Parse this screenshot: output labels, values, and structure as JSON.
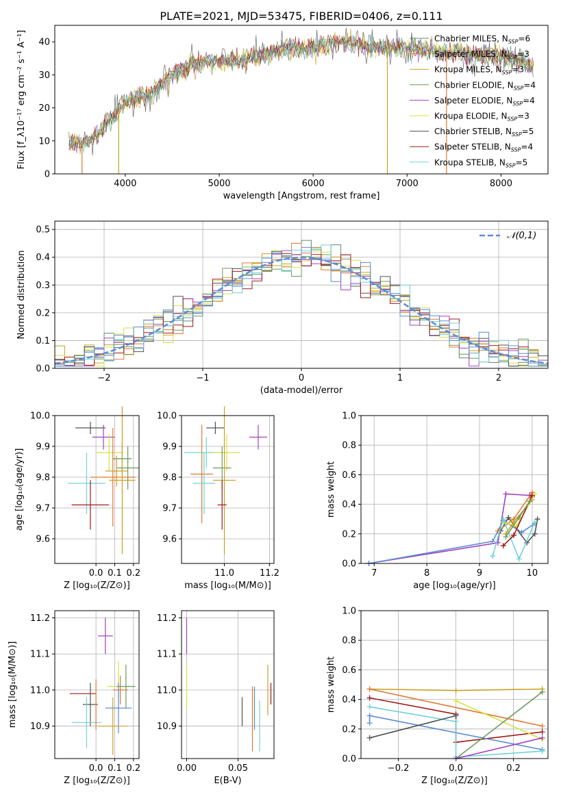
{
  "figure_title": "PLATE=2021, MJD=53475, FIBERID=0406, z=0.111",
  "colors": {
    "Chabrier MILES": "#5a8a6a",
    "Salpeter MILES": "#e07830",
    "Kroupa MILES": "#c8a020",
    "Chabrier ELODIE": "#6a9a5a",
    "Salpeter ELODIE": "#a040c0",
    "Kroupa ELODIE": "#d8e040",
    "Chabrier STELIB": "#505050",
    "Salpeter STELIB": "#a01818",
    "Kroupa STELIB": "#70d0d8",
    "gauss": "#5b8bd6"
  },
  "chart_data": [
    {
      "type": "line",
      "title": "PLATE=2021, MJD=53475, FIBERID=0406, z=0.111",
      "xlabel": "wavelength [Angstrom, rest frame]",
      "ylabel": "Flux [f_λ10⁻¹⁷ erg cm⁻² s⁻¹ A⁻¹]",
      "xlim": [
        3250,
        8500
      ],
      "ylim": [
        0,
        45
      ],
      "xticks": [
        4000,
        5000,
        6000,
        7000,
        8000
      ],
      "yticks": [
        0,
        10,
        20,
        30,
        40
      ],
      "legend_position": "right",
      "series": [
        {
          "name": "Chabrier MILES, N_SSP=6"
        },
        {
          "name": "Salpeter MILES, N_SSP=3"
        },
        {
          "name": "Kroupa MILES, N_SSP=3"
        },
        {
          "name": "Chabrier ELODIE, N_SSP=4"
        },
        {
          "name": "Salpeter ELODIE, N_SSP=4"
        },
        {
          "name": "Kroupa ELODIE, N_SSP=3"
        },
        {
          "name": "Chabrier STELIB, N_SSP=5"
        },
        {
          "name": "Salpeter STELIB, N_SSP=4"
        },
        {
          "name": "Kroupa STELIB, N_SSP=5"
        }
      ],
      "continuum": [
        [
          3400,
          9
        ],
        [
          3600,
          10
        ],
        [
          3700,
          12
        ],
        [
          3800,
          15
        ],
        [
          3950,
          20
        ],
        [
          4100,
          23
        ],
        [
          4300,
          25
        ],
        [
          4500,
          30
        ],
        [
          4700,
          33
        ],
        [
          4900,
          34
        ],
        [
          5100,
          34
        ],
        [
          5300,
          35
        ],
        [
          5500,
          36
        ],
        [
          5700,
          38
        ],
        [
          5900,
          38
        ],
        [
          6100,
          39
        ],
        [
          6300,
          40
        ],
        [
          6500,
          39
        ],
        [
          6700,
          38
        ],
        [
          6900,
          38
        ],
        [
          7100,
          38
        ],
        [
          7300,
          37
        ],
        [
          7500,
          37
        ],
        [
          7700,
          36
        ],
        [
          7900,
          36
        ],
        [
          8100,
          35
        ],
        [
          8300,
          33
        ]
      ],
      "grid": false
    },
    {
      "type": "histogram",
      "xlabel": "(data-model)/error",
      "ylabel": "Normed distribution",
      "xlim": [
        -2.5,
        2.5
      ],
      "ylim": [
        0,
        0.53
      ],
      "xticks": [
        -2,
        -1,
        0,
        1,
        2
      ],
      "yticks": [
        0.0,
        0.1,
        0.2,
        0.3,
        0.4,
        0.5
      ],
      "legend": "𝒩(0,1)",
      "legend_position": "top-right",
      "grid": true,
      "bin_width": 0.1
    },
    {
      "type": "scatter",
      "xlabel": "Z [log₁₀(Z/Z⊙)]",
      "ylabel": "age  [log₁₀(age/yr)]",
      "xlim": [
        -0.22,
        0.23
      ],
      "ylim": [
        9.52,
        10.0
      ],
      "xticks": [
        0.0,
        0.1,
        0.2
      ],
      "yticks": [
        9.6,
        9.7,
        9.8,
        9.9,
        10.0
      ],
      "grid": true,
      "points": [
        {
          "x": -0.03,
          "y": 9.96,
          "xerr": 0.08,
          "yerr": 0.02,
          "series": "Chabrier STELIB"
        },
        {
          "x": 0.04,
          "y": 9.93,
          "xerr": 0.06,
          "yerr": 0.04,
          "series": "Salpeter ELODIE"
        },
        {
          "x": 0.07,
          "y": 9.88,
          "xerr": 0.07,
          "yerr": 0.06,
          "series": "Kroupa ELODIE"
        },
        {
          "x": 0.17,
          "y": 9.83,
          "xerr": 0.06,
          "yerr": 0.07,
          "series": "Chabrier ELODIE"
        },
        {
          "x": 0.09,
          "y": 9.8,
          "xerr": 0.12,
          "yerr": 0.16,
          "series": "Salpeter MILES"
        },
        {
          "x": 0.14,
          "y": 9.86,
          "xerr": 0.05,
          "yerr": 0.05,
          "series": "Chabrier MILES"
        },
        {
          "x": 0.14,
          "y": 9.79,
          "xerr": 0.07,
          "yerr": 0.24,
          "series": "Kroupa MILES"
        },
        {
          "x": -0.05,
          "y": 9.78,
          "xerr": 0.1,
          "yerr": 0.1,
          "series": "Kroupa STELIB"
        },
        {
          "x": -0.03,
          "y": 9.71,
          "xerr": 0.1,
          "yerr": 0.08,
          "series": "Salpeter STELIB"
        },
        {
          "x": 0.11,
          "y": 9.82,
          "xerr": 0.06,
          "yerr": 0.05,
          "series": "Kroupa MILES (gold)"
        }
      ]
    },
    {
      "type": "scatter",
      "xlabel": "mass [log₁₀(M/M⊙)]",
      "ylabel": "",
      "xlim": [
        10.81,
        11.22
      ],
      "ylim": [
        9.52,
        10.0
      ],
      "xticks": [
        11.0,
        11.2
      ],
      "yticks": [
        9.6,
        9.7,
        9.8,
        9.9,
        10.0
      ],
      "grid": true,
      "points": [
        {
          "x": 10.96,
          "y": 9.96,
          "xerr": 0.04,
          "yerr": 0.02,
          "series": "Chabrier STELIB"
        },
        {
          "x": 11.15,
          "y": 9.93,
          "xerr": 0.04,
          "yerr": 0.04,
          "series": "Salpeter ELODIE"
        },
        {
          "x": 10.92,
          "y": 9.88,
          "xerr": 0.1,
          "yerr": 0.05,
          "series": "Kroupa STELIB"
        },
        {
          "x": 11.01,
          "y": 9.88,
          "xerr": 0.06,
          "yerr": 0.06,
          "series": "Kroupa ELODIE"
        },
        {
          "x": 10.99,
          "y": 9.83,
          "xerr": 0.04,
          "yerr": 0.07,
          "series": "Chabrier ELODIE"
        },
        {
          "x": 10.9,
          "y": 9.81,
          "xerr": 0.05,
          "yerr": 0.16,
          "series": "Salpeter MILES"
        },
        {
          "x": 11.0,
          "y": 9.79,
          "xerr": 0.05,
          "yerr": 0.24,
          "series": "Kroupa MILES"
        },
        {
          "x": 10.91,
          "y": 9.78,
          "xerr": 0.05,
          "yerr": 0.1,
          "series": "Kroupa STELIB"
        },
        {
          "x": 10.99,
          "y": 9.71,
          "xerr": 0.02,
          "yerr": 0.08,
          "series": "Salpeter STELIB"
        }
      ]
    },
    {
      "type": "line",
      "xlabel": "age  [log₁₀(age/yr)]",
      "ylabel": "mass weight",
      "xlim": [
        6.75,
        10.3
      ],
      "ylim": [
        0.0,
        1.0
      ],
      "xticks": [
        7,
        8,
        9,
        10
      ],
      "yticks": [
        0.0,
        0.2,
        0.4,
        0.6,
        0.8,
        1.0
      ],
      "grid": true,
      "series": [
        {
          "color_key": "Salpeter ELODIE",
          "x": [
            6.9,
            9.35,
            9.5,
            9.95,
            10.0
          ],
          "y": [
            0.0,
            0.14,
            0.47,
            0.46,
            0.45
          ]
        },
        {
          "color_key": "gauss",
          "x": [
            6.9,
            9.25,
            9.45,
            9.8,
            10.05
          ],
          "y": [
            0.0,
            0.15,
            0.29,
            0.21,
            0.27
          ]
        },
        {
          "color_key": "Chabrier STELIB",
          "x": [
            9.4,
            9.55,
            9.9,
            10.05,
            10.1
          ],
          "y": [
            0.22,
            0.31,
            0.14,
            0.2,
            0.3
          ]
        },
        {
          "color_key": "Salpeter MILES",
          "x": [
            9.35,
            9.65,
            10.0
          ],
          "y": [
            0.22,
            0.3,
            0.48
          ]
        },
        {
          "color_key": "Kroupa ELODIE",
          "x": [
            9.45,
            9.7,
            10.05
          ],
          "y": [
            0.28,
            0.25,
            0.47
          ]
        },
        {
          "color_key": "Kroupa STELIB",
          "x": [
            9.25,
            9.45,
            9.75,
            10.05
          ],
          "y": [
            0.05,
            0.3,
            0.03,
            0.28
          ]
        },
        {
          "color_key": "Salpeter STELIB",
          "x": [
            9.45,
            9.65,
            10.0
          ],
          "y": [
            0.12,
            0.19,
            0.46
          ]
        },
        {
          "color_key": "Kroupa MILES",
          "x": [
            9.5,
            9.65,
            10.0
          ],
          "y": [
            0.2,
            0.28,
            0.43
          ]
        },
        {
          "color_key": "Chabrier ELODIE",
          "x": [
            9.5,
            9.75,
            9.95
          ],
          "y": [
            0.18,
            0.31,
            0.42
          ]
        }
      ]
    },
    {
      "type": "scatter",
      "xlabel": "Z [log₁₀(Z/Z⊙)]",
      "ylabel": "mass [log₁₀(M/M⊙)]",
      "xlim": [
        -0.22,
        0.23
      ],
      "ylim": [
        10.81,
        11.22
      ],
      "xticks": [
        0.0,
        0.1,
        0.2
      ],
      "yticks": [
        10.9,
        11.0,
        11.1,
        11.2
      ],
      "grid": true,
      "points": [
        {
          "x": 0.05,
          "y": 11.15,
          "xerr": 0.04,
          "yerr": 0.05,
          "series": "Salpeter ELODIE"
        },
        {
          "x": 0.12,
          "y": 11.01,
          "xerr": 0.06,
          "yerr": 0.07,
          "series": "Kroupa ELODIE"
        },
        {
          "x": 0.16,
          "y": 11.01,
          "xerr": 0.05,
          "yerr": 0.06,
          "series": "Chabrier ELODIE"
        },
        {
          "x": 0.13,
          "y": 11.0,
          "xerr": 0.04,
          "yerr": 0.04,
          "series": "Salpeter MILES"
        },
        {
          "x": -0.07,
          "y": 10.99,
          "xerr": 0.07,
          "yerr": 0.0,
          "series": "Salpeter STELIB"
        },
        {
          "x": -0.03,
          "y": 10.96,
          "xerr": 0.04,
          "yerr": 0.06,
          "series": "Chabrier STELIB"
        },
        {
          "x": 0.12,
          "y": 10.95,
          "xerr": 0.07,
          "yerr": 0.07,
          "series": "gauss"
        },
        {
          "x": -0.05,
          "y": 10.91,
          "xerr": 0.08,
          "yerr": 0.07,
          "series": "Kroupa STELIB"
        },
        {
          "x": 0.09,
          "y": 10.9,
          "xerr": 0.08,
          "yerr": 0.08,
          "series": "Kroupa MILES"
        },
        {
          "x": 0.0,
          "y": 10.96,
          "xerr": 0.0,
          "yerr": 0.07,
          "series": "Salpeter MILES"
        }
      ]
    },
    {
      "type": "scatter",
      "xlabel": "E(B-V)",
      "ylabel": "",
      "xlim": [
        -0.005,
        0.085
      ],
      "ylim": [
        10.81,
        11.22
      ],
      "xticks": [
        0.0,
        0.05
      ],
      "yticks": [
        10.9,
        11.0,
        11.1,
        11.2
      ],
      "grid": true,
      "points": [
        {
          "x": 0.0,
          "y": 11.15,
          "yerr": 0.05,
          "series": "Salpeter ELODIE"
        },
        {
          "x": 0.0,
          "y": 11.01,
          "yerr": 0.06,
          "series": "Kroupa ELODIE"
        },
        {
          "x": 0.079,
          "y": 11.0,
          "yerr": 0.07,
          "series": "Kroupa MILES"
        },
        {
          "x": 0.082,
          "y": 10.99,
          "yerr": 0.03,
          "series": "Salpeter STELIB"
        },
        {
          "x": 0.054,
          "y": 10.94,
          "yerr": 0.04,
          "series": "Chabrier STELIB"
        },
        {
          "x": 0.064,
          "y": 10.92,
          "yerr": 0.09,
          "series": "Salpeter MILES"
        },
        {
          "x": 0.066,
          "y": 10.95,
          "yerr": 0.06,
          "series": "gauss"
        },
        {
          "x": 0.071,
          "y": 10.9,
          "yerr": 0.07,
          "series": "Kroupa STELIB"
        }
      ]
    },
    {
      "type": "line",
      "xlabel": "Z [log₁₀(Z/Z⊙)]",
      "ylabel": "mass weight",
      "xlim": [
        -0.33,
        0.32
      ],
      "ylim": [
        0.0,
        1.0
      ],
      "xticks": [
        -0.2,
        0.0,
        0.2
      ],
      "yticks": [
        0.0,
        0.2,
        0.4,
        0.6,
        0.8,
        1.0
      ],
      "grid": true,
      "series": [
        {
          "color_key": "Kroupa MILES",
          "x": [
            -0.3,
            0.0,
            0.3
          ],
          "y": [
            0.47,
            0.46,
            0.47
          ]
        },
        {
          "color_key": "Salpeter MILES",
          "x": [
            -0.3,
            0.3
          ],
          "y": [
            0.47,
            0.22
          ]
        },
        {
          "color_key": "Salpeter STELIB",
          "x": [
            -0.3,
            0.0,
            0.0,
            0.3
          ],
          "y": [
            0.41,
            0.3,
            0.11,
            0.18
          ]
        },
        {
          "color_key": "gauss",
          "x": [
            -0.3,
            -0.3,
            0.3
          ],
          "y": [
            0.24,
            0.29,
            0.06
          ]
        },
        {
          "color_key": "Kroupa STELIB",
          "x": [
            -0.3,
            0.0,
            0.0,
            0.3
          ],
          "y": [
            0.35,
            0.25,
            0.01,
            0.05
          ]
        },
        {
          "color_key": "Kroupa ELODIE",
          "x": [
            0.0,
            0.3
          ],
          "y": [
            0.39,
            0.13
          ]
        },
        {
          "color_key": "Chabrier STELIB",
          "x": [
            -0.3,
            0.0
          ],
          "y": [
            0.14,
            0.29
          ]
        },
        {
          "color_key": "Chabrier ELODIE",
          "x": [
            0.0,
            0.3
          ],
          "y": [
            0.0,
            0.45
          ]
        },
        {
          "color_key": "Salpeter ELODIE",
          "x": [
            0.0,
            0.3
          ],
          "y": [
            0.0,
            0.14
          ]
        }
      ]
    }
  ]
}
